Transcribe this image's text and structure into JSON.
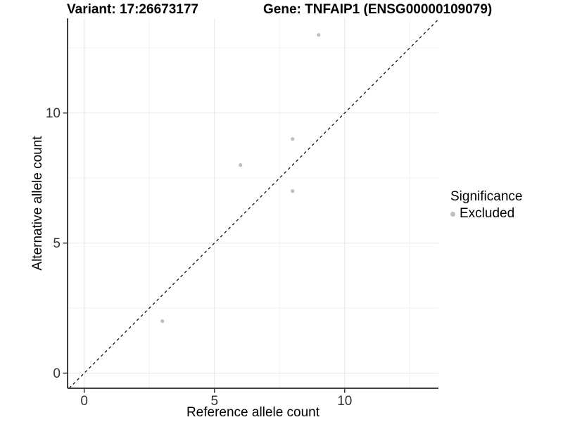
{
  "titles": {
    "variant": "Variant: 17:26673177",
    "gene": "Gene: TNFAIP1 (ENSG00000109079)"
  },
  "chart_data": {
    "type": "scatter",
    "title_left": "Variant: 17:26673177",
    "title_right": "Gene: TNFAIP1 (ENSG00000109079)",
    "xlabel": "Reference allele count",
    "ylabel": "Alternative allele count",
    "xlim": [
      -0.64,
      13.6
    ],
    "ylim": [
      -0.58,
      13.64
    ],
    "x_ticks": [
      0,
      5,
      10
    ],
    "y_ticks": [
      0,
      5,
      10
    ],
    "x_minor_ticks": [
      2.5,
      7.5,
      12.5
    ],
    "y_minor_ticks": [
      2.5,
      7.5,
      12.5
    ],
    "grid": true,
    "points": [
      {
        "x": 3,
        "y": 2,
        "significance": "Excluded"
      },
      {
        "x": 6,
        "y": 8,
        "significance": "Excluded"
      },
      {
        "x": 8,
        "y": 7,
        "significance": "Excluded"
      },
      {
        "x": 8,
        "y": 9,
        "significance": "Excluded"
      },
      {
        "x": 9,
        "y": 13,
        "significance": "Excluded"
      }
    ],
    "identity_line": {
      "slope": 1,
      "intercept": 0,
      "style": "dashed"
    },
    "legend": {
      "title": "Significance",
      "position": "right",
      "entries": [
        {
          "label": "Excluded",
          "color": "#bebebe"
        }
      ]
    },
    "colors": {
      "point": "#bebebe",
      "grid_major": "#e6e6e6",
      "grid_minor": "#f1f1f1",
      "axis_line": "#404040",
      "tick_mark": "#333333",
      "tick_label": "#333333",
      "identity_line": "#000000",
      "background": "#ffffff"
    }
  }
}
